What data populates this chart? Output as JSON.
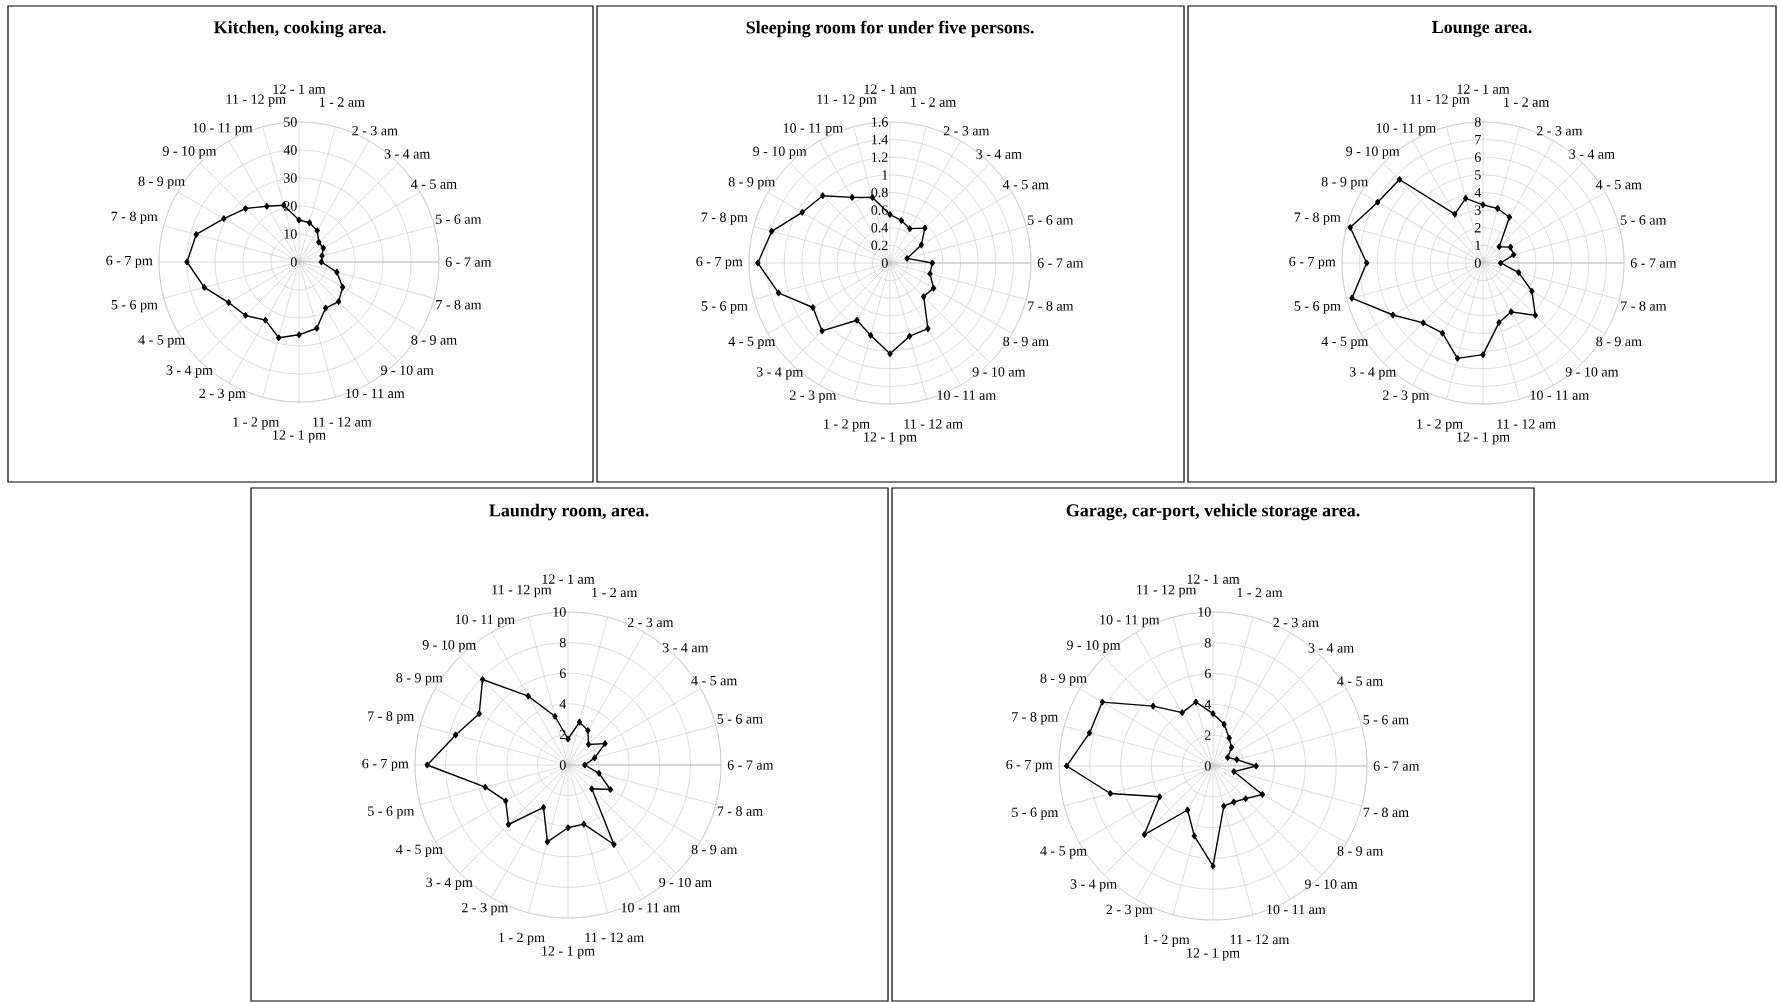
{
  "chart_data": [
    {
      "type": "radar",
      "title": "Kitchen, cooking area.",
      "categories": [
        "12 - 1 am",
        "1 - 2 am",
        "2 - 3 am",
        "3 - 4 am",
        "4 - 5 am",
        "5 - 6 am",
        "6 - 7 am",
        "7 - 8 am",
        "8 - 9 am",
        "9 - 10 am",
        "10 - 11 am",
        "11 - 12 am",
        "12 - 1 pm",
        "1 - 2 pm",
        "2 - 3 pm",
        "3 - 4 pm",
        "4 - 5 pm",
        "5 - 6 pm",
        "6 - 7 pm",
        "7 - 8 pm",
        "8 - 9 pm",
        "9 - 10 pm",
        "10 - 11 pm",
        "11 - 12 pm"
      ],
      "series": [
        {
          "color": "#000000",
          "values": [
            15,
            14.5,
            13,
            10,
            10,
            8.5,
            8,
            14,
            18,
            20,
            19,
            24.5,
            26,
            28,
            24,
            27,
            29,
            35,
            40,
            38,
            31,
            27,
            23,
            21
          ]
        }
      ],
      "ylim": [
        0,
        50
      ],
      "yticks": [
        0,
        10,
        20,
        30,
        40,
        50
      ],
      "grid": true,
      "marker": "diamond"
    },
    {
      "type": "radar",
      "title": "Sleeping room for under five persons.",
      "categories": [
        "12 - 1 am",
        "1 - 2 am",
        "2 - 3 am",
        "3 - 4 am",
        "4 - 5 am",
        "5 - 6 am",
        "6 - 7 am",
        "7 - 8 am",
        "8 - 9 am",
        "9 - 10 am",
        "10 - 11 am",
        "11 - 12 am",
        "12 - 1 pm",
        "1 - 2 pm",
        "2 - 3 pm",
        "3 - 4 pm",
        "4 - 5 pm",
        "5 - 6 pm",
        "6 - 7 pm",
        "7 - 8 pm",
        "8 - 9 pm",
        "9 - 10 pm",
        "10 - 11 pm",
        "11 - 12 pm"
      ],
      "series": [
        {
          "color": "#000000",
          "values": [
            0.55,
            0.5,
            0.45,
            0.56,
            0.41,
            0.2,
            0.48,
            0.47,
            0.57,
            0.54,
            0.86,
            0.86,
            1.03,
            0.85,
            0.75,
            1.09,
            1.01,
            1.31,
            1.5,
            1.39,
            1.15,
            1.08,
            0.86,
            0.77
          ]
        }
      ],
      "ylim": [
        0,
        1.6
      ],
      "yticks": [
        0,
        0.2,
        0.4,
        0.6,
        0.8,
        1,
        1.2,
        1.4,
        1.6
      ],
      "grid": true,
      "marker": "diamond"
    },
    {
      "type": "radar",
      "title": "Lounge area.",
      "categories": [
        "12 - 1 am",
        "1 - 2 am",
        "2 - 3 am",
        "3 - 4 am",
        "4 - 5 am",
        "5 - 6 am",
        "6 - 7 am",
        "7 - 8 am",
        "8 - 9 am",
        "9 - 10 am",
        "10 - 11 am",
        "11 - 12 am",
        "12 - 1 pm",
        "1 - 2 pm",
        "2 - 3 pm",
        "3 - 4 pm",
        "4 - 5 pm",
        "5 - 6 pm",
        "6 - 7 pm",
        "7 - 8 pm",
        "8 - 9 pm",
        "9 - 10 pm",
        "10 - 11 pm",
        "11 - 12 pm"
      ],
      "series": [
        {
          "color": "#000000",
          "values": [
            3.3,
            3.2,
            3.0,
            1.3,
            1.8,
            1.8,
            1.0,
            2.1,
            3.2,
            4.2,
            3.2,
            3.5,
            5.2,
            5.6,
            4.6,
            4.8,
            5.9,
            7.7,
            6.6,
            7.8,
            6.9,
            6.7,
            3.2,
            3.8
          ]
        }
      ],
      "ylim": [
        0,
        8
      ],
      "yticks": [
        0,
        1,
        2,
        3,
        4,
        5,
        6,
        7,
        8
      ],
      "grid": true,
      "marker": "diamond"
    },
    {
      "type": "radar",
      "title": "Laundry room, area.",
      "categories": [
        "12 - 1 am",
        "1 - 2 am",
        "2 - 3 am",
        "3 - 4 am",
        "4 - 5 am",
        "5 - 6 am",
        "6 - 7 am",
        "7 - 8 am",
        "8 - 9 am",
        "9 - 10 am",
        "10 - 11 am",
        "11 - 12 am",
        "12 - 1 pm",
        "1 - 2 pm",
        "2 - 3 pm",
        "3 - 4 pm",
        "4 - 5 pm",
        "5 - 6 pm",
        "6 - 7 pm",
        "7 - 8 pm",
        "8 - 9 pm",
        "9 - 10 pm",
        "10 - 11 pm",
        "11 - 12 pm"
      ],
      "series": [
        {
          "color": "#000000",
          "values": [
            1.7,
            2.9,
            2.6,
            1.9,
            2.8,
            1.8,
            1.1,
            2.1,
            3.2,
            2.2,
            6.0,
            4.0,
            4.1,
            5.2,
            3.2,
            5.5,
            4.7,
            5.6,
            9.2,
            7.6,
            6.7,
            7.9,
            5.2,
            3.3
          ]
        }
      ],
      "ylim": [
        0,
        10
      ],
      "yticks": [
        0,
        2,
        4,
        6,
        8,
        10
      ],
      "grid": true,
      "marker": "diamond"
    },
    {
      "type": "radar",
      "title": "Garage, car-port, vehicle storage area.",
      "categories": [
        "12 - 1 am",
        "1 - 2 am",
        "2 - 3 am",
        "3 - 4 am",
        "4 - 5 am",
        "5 - 6 am",
        "6 - 7 am",
        "7 - 8 am",
        "8 - 9 am",
        "9 - 10 am",
        "10 - 11 am",
        "11 - 12 am",
        "12 - 1 pm",
        "1 - 2 pm",
        "2 - 3 pm",
        "3 - 4 pm",
        "4 - 5 pm",
        "5 - 6 pm",
        "6 - 7 pm",
        "7 - 8 pm",
        "8 - 9 pm",
        "9 - 10 pm",
        "10 - 11 pm",
        "11 - 12 pm"
      ],
      "series": [
        {
          "color": "#000000",
          "values": [
            3.4,
            2.8,
            2.1,
            1.7,
            1.1,
            1.6,
            2.8,
            1.4,
            3.7,
            3.0,
            2.7,
            2.7,
            6.5,
            4.7,
            3.3,
            6.3,
            4.0,
            6.9,
            9.5,
            8.3,
            8.3,
            5.5,
            4.0,
            4.3
          ]
        }
      ],
      "ylim": [
        0,
        10
      ],
      "yticks": [
        0,
        2,
        4,
        6,
        8,
        10
      ],
      "grid": true,
      "marker": "diamond"
    }
  ]
}
